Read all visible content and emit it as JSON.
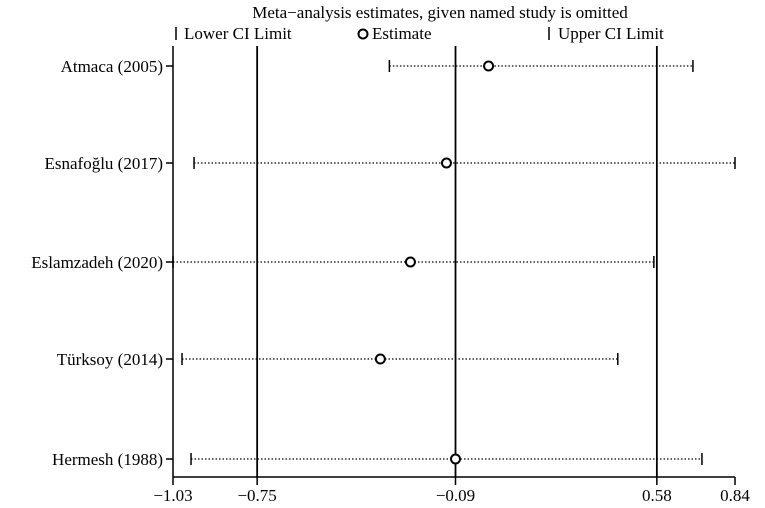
{
  "chart_data": {
    "type": "forest",
    "title": "Meta−analysis estimates, given named study is omitted",
    "legend": {
      "lower": "Lower CI Limit",
      "estimate": "Estimate",
      "upper": "Upper CI Limit"
    },
    "xlim": [
      -1.03,
      0.84
    ],
    "xticks": [
      {
        "value": -1.03,
        "label": "−1.03"
      },
      {
        "value": -0.75,
        "label": "−0.75"
      },
      {
        "value": -0.09,
        "label": "−0.09"
      },
      {
        "value": 0.58,
        "label": "0.58"
      },
      {
        "value": 0.84,
        "label": "0.84"
      }
    ],
    "reference_lines": [
      -0.75,
      -0.09,
      0.58
    ],
    "studies": [
      {
        "name": "Atmaca (2005)",
        "lower": -0.31,
        "estimate": 0.02,
        "upper": 0.7
      },
      {
        "name": "Esnafoğlu (2017)",
        "lower": -0.96,
        "estimate": -0.12,
        "upper": 0.84
      },
      {
        "name": "Eslamzadeh (2020)",
        "lower": -1.03,
        "estimate": -0.24,
        "upper": 0.57
      },
      {
        "name": "Türksoy (2014)",
        "lower": -1.0,
        "estimate": -0.34,
        "upper": 0.45
      },
      {
        "name": "Hermesh (1988)",
        "lower": -0.97,
        "estimate": -0.09,
        "upper": 0.73
      }
    ]
  }
}
